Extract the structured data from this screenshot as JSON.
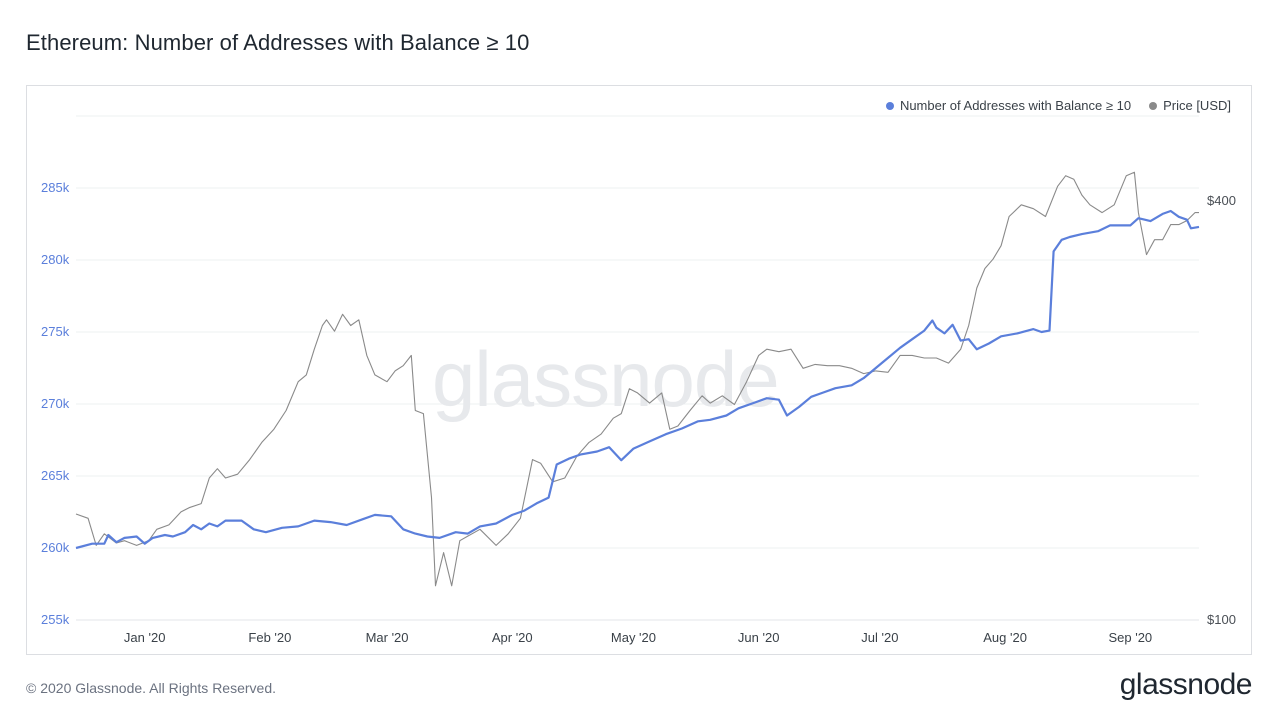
{
  "title": "Ethereum: Number of Addresses with Balance ≥ 10",
  "watermark": "glassnode",
  "footer": {
    "copyright": "© 2020 Glassnode. All Rights Reserved.",
    "logo": "glassnode"
  },
  "colors": {
    "addresses": "#5b7fdb",
    "price": "#8a8a8a",
    "left_axis_text": "#5b7fdb",
    "right_axis_text": "#4a4f55",
    "grid": "#eef0f2"
  },
  "chart_data": {
    "type": "line",
    "grid": true,
    "legend_position": "top-right",
    "x_range": [
      "2019-12-15",
      "2020-09-18"
    ],
    "x_ticks": [
      {
        "date": "2020-01-01",
        "label": "Jan '20"
      },
      {
        "date": "2020-02-01",
        "label": "Feb '20"
      },
      {
        "date": "2020-03-01",
        "label": "Mar '20"
      },
      {
        "date": "2020-04-01",
        "label": "Apr '20"
      },
      {
        "date": "2020-05-01",
        "label": "May '20"
      },
      {
        "date": "2020-06-01",
        "label": "Jun '20"
      },
      {
        "date": "2020-07-01",
        "label": "Jul '20"
      },
      {
        "date": "2020-08-01",
        "label": "Aug '20"
      },
      {
        "date": "2020-09-01",
        "label": "Sep '20"
      }
    ],
    "y_left": {
      "ylim": [
        255000,
        290000
      ],
      "ticks": [
        {
          "value": 255000,
          "label": "255k"
        },
        {
          "value": 260000,
          "label": "260k"
        },
        {
          "value": 265000,
          "label": "265k"
        },
        {
          "value": 270000,
          "label": "270k"
        },
        {
          "value": 275000,
          "label": "275k"
        },
        {
          "value": 280000,
          "label": "280k"
        },
        {
          "value": 285000,
          "label": "285k"
        }
      ]
    },
    "y_right": {
      "scale": "log",
      "ylim": [
        100,
        530
      ],
      "ticks": [
        {
          "value": 100,
          "label": "$100"
        },
        {
          "value": 400,
          "label": "$400"
        }
      ]
    },
    "series": [
      {
        "name": "Number of Addresses with Balance ≥ 10",
        "axis": "left",
        "points": [
          [
            "2019-12-15",
            260000
          ],
          [
            "2019-12-19",
            260300
          ],
          [
            "2019-12-22",
            260300
          ],
          [
            "2019-12-23",
            260900
          ],
          [
            "2019-12-25",
            260400
          ],
          [
            "2019-12-27",
            260700
          ],
          [
            "2019-12-30",
            260800
          ],
          [
            "2020-01-01",
            260300
          ],
          [
            "2020-01-03",
            260700
          ],
          [
            "2020-01-06",
            260900
          ],
          [
            "2020-01-08",
            260800
          ],
          [
            "2020-01-11",
            261100
          ],
          [
            "2020-01-13",
            261600
          ],
          [
            "2020-01-15",
            261300
          ],
          [
            "2020-01-17",
            261700
          ],
          [
            "2020-01-19",
            261500
          ],
          [
            "2020-01-21",
            261900
          ],
          [
            "2020-01-25",
            261900
          ],
          [
            "2020-01-28",
            261300
          ],
          [
            "2020-01-31",
            261100
          ],
          [
            "2020-02-04",
            261400
          ],
          [
            "2020-02-08",
            261500
          ],
          [
            "2020-02-12",
            261900
          ],
          [
            "2020-02-16",
            261800
          ],
          [
            "2020-02-20",
            261600
          ],
          [
            "2020-02-24",
            262000
          ],
          [
            "2020-02-27",
            262300
          ],
          [
            "2020-03-02",
            262200
          ],
          [
            "2020-03-05",
            261300
          ],
          [
            "2020-03-08",
            261000
          ],
          [
            "2020-03-11",
            260800
          ],
          [
            "2020-03-14",
            260700
          ],
          [
            "2020-03-18",
            261100
          ],
          [
            "2020-03-21",
            261000
          ],
          [
            "2020-03-24",
            261500
          ],
          [
            "2020-03-28",
            261700
          ],
          [
            "2020-04-01",
            262300
          ],
          [
            "2020-04-04",
            262600
          ],
          [
            "2020-04-07",
            263100
          ],
          [
            "2020-04-10",
            263500
          ],
          [
            "2020-04-12",
            265800
          ],
          [
            "2020-04-15",
            266200
          ],
          [
            "2020-04-18",
            266500
          ],
          [
            "2020-04-22",
            266700
          ],
          [
            "2020-04-25",
            267000
          ],
          [
            "2020-04-28",
            266100
          ],
          [
            "2020-05-01",
            266900
          ],
          [
            "2020-05-05",
            267400
          ],
          [
            "2020-05-09",
            267900
          ],
          [
            "2020-05-13",
            268300
          ],
          [
            "2020-05-17",
            268800
          ],
          [
            "2020-05-20",
            268900
          ],
          [
            "2020-05-24",
            269200
          ],
          [
            "2020-05-27",
            269700
          ],
          [
            "2020-05-31",
            270100
          ],
          [
            "2020-06-03",
            270400
          ],
          [
            "2020-06-06",
            270300
          ],
          [
            "2020-06-08",
            269200
          ],
          [
            "2020-06-11",
            269800
          ],
          [
            "2020-06-14",
            270500
          ],
          [
            "2020-06-17",
            270800
          ],
          [
            "2020-06-20",
            271100
          ],
          [
            "2020-06-24",
            271300
          ],
          [
            "2020-06-27",
            271800
          ],
          [
            "2020-06-30",
            272500
          ],
          [
            "2020-07-03",
            273200
          ],
          [
            "2020-07-06",
            273900
          ],
          [
            "2020-07-09",
            274500
          ],
          [
            "2020-07-12",
            275100
          ],
          [
            "2020-07-14",
            275800
          ],
          [
            "2020-07-15",
            275300
          ],
          [
            "2020-07-17",
            274900
          ],
          [
            "2020-07-19",
            275500
          ],
          [
            "2020-07-21",
            274400
          ],
          [
            "2020-07-23",
            274500
          ],
          [
            "2020-07-25",
            273800
          ],
          [
            "2020-07-28",
            274200
          ],
          [
            "2020-07-31",
            274700
          ],
          [
            "2020-08-04",
            274900
          ],
          [
            "2020-08-08",
            275200
          ],
          [
            "2020-08-10",
            275000
          ],
          [
            "2020-08-12",
            275100
          ],
          [
            "2020-08-13",
            280600
          ],
          [
            "2020-08-15",
            281400
          ],
          [
            "2020-08-17",
            281600
          ],
          [
            "2020-08-20",
            281800
          ],
          [
            "2020-08-24",
            282000
          ],
          [
            "2020-08-27",
            282400
          ],
          [
            "2020-08-30",
            282400
          ],
          [
            "2020-09-01",
            282400
          ],
          [
            "2020-09-03",
            282900
          ],
          [
            "2020-09-06",
            282700
          ],
          [
            "2020-09-09",
            283200
          ],
          [
            "2020-09-11",
            283400
          ],
          [
            "2020-09-13",
            283000
          ],
          [
            "2020-09-15",
            282800
          ],
          [
            "2020-09-16",
            282200
          ],
          [
            "2020-09-18",
            282300
          ]
        ]
      },
      {
        "name": "Price [USD]",
        "axis": "right",
        "points": [
          [
            "2019-12-15",
            142
          ],
          [
            "2019-12-18",
            140
          ],
          [
            "2019-12-20",
            128
          ],
          [
            "2019-12-22",
            133
          ],
          [
            "2019-12-25",
            129
          ],
          [
            "2019-12-27",
            130
          ],
          [
            "2019-12-30",
            128
          ],
          [
            "2020-01-02",
            130
          ],
          [
            "2020-01-04",
            135
          ],
          [
            "2020-01-07",
            137
          ],
          [
            "2020-01-10",
            143
          ],
          [
            "2020-01-12",
            145
          ],
          [
            "2020-01-15",
            147
          ],
          [
            "2020-01-17",
            160
          ],
          [
            "2020-01-19",
            165
          ],
          [
            "2020-01-21",
            160
          ],
          [
            "2020-01-24",
            162
          ],
          [
            "2020-01-27",
            170
          ],
          [
            "2020-01-30",
            180
          ],
          [
            "2020-02-02",
            188
          ],
          [
            "2020-02-05",
            200
          ],
          [
            "2020-02-08",
            220
          ],
          [
            "2020-02-10",
            225
          ],
          [
            "2020-02-12",
            245
          ],
          [
            "2020-02-14",
            265
          ],
          [
            "2020-02-15",
            270
          ],
          [
            "2020-02-17",
            260
          ],
          [
            "2020-02-19",
            275
          ],
          [
            "2020-02-21",
            265
          ],
          [
            "2020-02-23",
            270
          ],
          [
            "2020-02-25",
            240
          ],
          [
            "2020-02-27",
            225
          ],
          [
            "2020-03-01",
            220
          ],
          [
            "2020-03-03",
            228
          ],
          [
            "2020-03-05",
            232
          ],
          [
            "2020-03-07",
            240
          ],
          [
            "2020-03-08",
            200
          ],
          [
            "2020-03-10",
            198
          ],
          [
            "2020-03-12",
            150
          ],
          [
            "2020-03-13",
            112
          ],
          [
            "2020-03-15",
            125
          ],
          [
            "2020-03-17",
            112
          ],
          [
            "2020-03-19",
            130
          ],
          [
            "2020-03-21",
            132
          ],
          [
            "2020-03-24",
            135
          ],
          [
            "2020-03-28",
            128
          ],
          [
            "2020-03-31",
            133
          ],
          [
            "2020-04-03",
            140
          ],
          [
            "2020-04-06",
            170
          ],
          [
            "2020-04-08",
            168
          ],
          [
            "2020-04-11",
            158
          ],
          [
            "2020-04-14",
            160
          ],
          [
            "2020-04-17",
            172
          ],
          [
            "2020-04-20",
            180
          ],
          [
            "2020-04-23",
            185
          ],
          [
            "2020-04-26",
            195
          ],
          [
            "2020-04-28",
            198
          ],
          [
            "2020-04-30",
            215
          ],
          [
            "2020-05-02",
            212
          ],
          [
            "2020-05-05",
            205
          ],
          [
            "2020-05-08",
            212
          ],
          [
            "2020-05-10",
            188
          ],
          [
            "2020-05-12",
            190
          ],
          [
            "2020-05-15",
            200
          ],
          [
            "2020-05-18",
            210
          ],
          [
            "2020-05-20",
            205
          ],
          [
            "2020-05-23",
            210
          ],
          [
            "2020-05-26",
            204
          ],
          [
            "2020-05-29",
            220
          ],
          [
            "2020-06-01",
            240
          ],
          [
            "2020-06-03",
            245
          ],
          [
            "2020-06-06",
            243
          ],
          [
            "2020-06-09",
            245
          ],
          [
            "2020-06-12",
            230
          ],
          [
            "2020-06-15",
            233
          ],
          [
            "2020-06-18",
            232
          ],
          [
            "2020-06-21",
            232
          ],
          [
            "2020-06-24",
            230
          ],
          [
            "2020-06-27",
            226
          ],
          [
            "2020-06-30",
            228
          ],
          [
            "2020-07-03",
            227
          ],
          [
            "2020-07-06",
            240
          ],
          [
            "2020-07-09",
            240
          ],
          [
            "2020-07-12",
            238
          ],
          [
            "2020-07-15",
            238
          ],
          [
            "2020-07-18",
            234
          ],
          [
            "2020-07-21",
            245
          ],
          [
            "2020-07-23",
            265
          ],
          [
            "2020-07-25",
            300
          ],
          [
            "2020-07-27",
            320
          ],
          [
            "2020-07-29",
            330
          ],
          [
            "2020-07-31",
            345
          ],
          [
            "2020-08-02",
            380
          ],
          [
            "2020-08-03",
            385
          ],
          [
            "2020-08-05",
            395
          ],
          [
            "2020-08-08",
            390
          ],
          [
            "2020-08-11",
            380
          ],
          [
            "2020-08-14",
            420
          ],
          [
            "2020-08-16",
            435
          ],
          [
            "2020-08-18",
            430
          ],
          [
            "2020-08-20",
            408
          ],
          [
            "2020-08-22",
            395
          ],
          [
            "2020-08-25",
            385
          ],
          [
            "2020-08-28",
            395
          ],
          [
            "2020-08-31",
            435
          ],
          [
            "2020-09-02",
            440
          ],
          [
            "2020-09-03",
            385
          ],
          [
            "2020-09-05",
            335
          ],
          [
            "2020-09-07",
            352
          ],
          [
            "2020-09-09",
            352
          ],
          [
            "2020-09-11",
            370
          ],
          [
            "2020-09-13",
            370
          ],
          [
            "2020-09-15",
            375
          ],
          [
            "2020-09-17",
            385
          ],
          [
            "2020-09-18",
            385
          ]
        ]
      }
    ]
  }
}
